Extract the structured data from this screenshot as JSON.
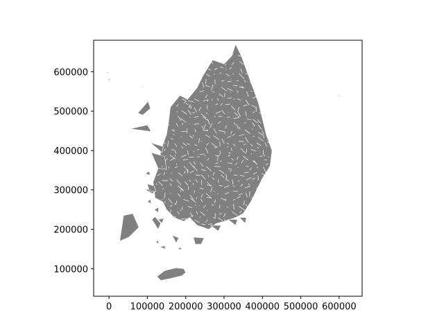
{
  "figure": {
    "background": "#ffffff",
    "land_color": "#808080",
    "boundary_color": "#ffffff"
  },
  "chart_data": {
    "type": "map",
    "description_of_marks": "choropleth-style map outline of administrative districts in grey with white boundaries",
    "xlim": [
      -40000,
      660000
    ],
    "ylim": [
      30000,
      680000
    ],
    "x_ticks": [
      {
        "value": 0,
        "label": "0"
      },
      {
        "value": 100000,
        "label": "100000"
      },
      {
        "value": 200000,
        "label": "200000"
      },
      {
        "value": 300000,
        "label": "300000"
      },
      {
        "value": 400000,
        "label": "400000"
      },
      {
        "value": 500000,
        "label": "500000"
      },
      {
        "value": 600000,
        "label": "600000"
      }
    ],
    "y_ticks": [
      {
        "value": 100000,
        "label": "100000"
      },
      {
        "value": 200000,
        "label": "200000"
      },
      {
        "value": 300000,
        "label": "300000"
      },
      {
        "value": 400000,
        "label": "400000"
      },
      {
        "value": 500000,
        "label": "500000"
      },
      {
        "value": 600000,
        "label": "600000"
      }
    ],
    "regions": [
      {
        "name": "mainland",
        "points": [
          [
            205000,
            530000
          ],
          [
            230000,
            560000
          ],
          [
            245000,
            590000
          ],
          [
            270000,
            630000
          ],
          [
            300000,
            620000
          ],
          [
            320000,
            640000
          ],
          [
            330000,
            670000
          ],
          [
            345000,
            640000
          ],
          [
            360000,
            600000
          ],
          [
            375000,
            560000
          ],
          [
            390000,
            520000
          ],
          [
            400000,
            480000
          ],
          [
            410000,
            440000
          ],
          [
            425000,
            400000
          ],
          [
            420000,
            360000
          ],
          [
            400000,
            330000
          ],
          [
            385000,
            300000
          ],
          [
            370000,
            270000
          ],
          [
            350000,
            240000
          ],
          [
            330000,
            230000
          ],
          [
            300000,
            220000
          ],
          [
            280000,
            215000
          ],
          [
            260000,
            200000
          ],
          [
            230000,
            210000
          ],
          [
            210000,
            230000
          ],
          [
            195000,
            220000
          ],
          [
            170000,
            230000
          ],
          [
            150000,
            250000
          ],
          [
            140000,
            270000
          ],
          [
            120000,
            280000
          ],
          [
            115000,
            320000
          ],
          [
            130000,
            360000
          ],
          [
            135000,
            400000
          ],
          [
            150000,
            440000
          ],
          [
            155000,
            470000
          ],
          [
            160000,
            510000
          ],
          [
            185000,
            540000
          ]
        ]
      },
      {
        "name": "jeju",
        "points": [
          [
            125000,
            80000
          ],
          [
            145000,
            95000
          ],
          [
            175000,
            102000
          ],
          [
            195000,
            100000
          ],
          [
            200000,
            90000
          ],
          [
            190000,
            82000
          ],
          [
            160000,
            75000
          ],
          [
            135000,
            70000
          ]
        ]
      },
      {
        "name": "sw-large-island",
        "points": [
          [
            28000,
            170000
          ],
          [
            38000,
            235000
          ],
          [
            62000,
            240000
          ],
          [
            78000,
            205000
          ],
          [
            52000,
            180000
          ]
        ]
      },
      {
        "name": "ulleung",
        "points": [
          [
            540000,
            555000
          ],
          [
            600000,
            540000
          ],
          [
            625000,
            530000
          ],
          [
            580000,
            545000
          ]
        ]
      },
      {
        "name": "isl-1",
        "points": [
          [
            95000,
            300000
          ],
          [
            115000,
            290000
          ],
          [
            120000,
            305000
          ]
        ]
      },
      {
        "name": "isl-2",
        "points": [
          [
            112000,
            225000
          ],
          [
            128000,
            200000
          ],
          [
            135000,
            215000
          ],
          [
            120000,
            232000
          ]
        ]
      },
      {
        "name": "isl-3",
        "points": [
          [
            128000,
            225000
          ],
          [
            138000,
            215000
          ],
          [
            143000,
            228000
          ]
        ]
      },
      {
        "name": "isl-4",
        "points": [
          [
            75000,
            495000
          ],
          [
            102000,
            525000
          ],
          [
            108000,
            507000
          ],
          [
            88000,
            490000
          ]
        ]
      },
      {
        "name": "isl-5",
        "points": [
          [
            55000,
            455000
          ],
          [
            100000,
            465000
          ],
          [
            110000,
            448000
          ]
        ]
      },
      {
        "name": "isl-6",
        "points": [
          [
            108000,
            420000
          ],
          [
            142000,
            410000
          ],
          [
            138000,
            395000
          ]
        ]
      },
      {
        "name": "isl-7",
        "points": [
          [
            110000,
            395000
          ],
          [
            145000,
            385000
          ],
          [
            150000,
            352000
          ],
          [
            128000,
            355000
          ]
        ]
      },
      {
        "name": "isl-8",
        "points": [
          [
            100000,
            315000
          ],
          [
            118000,
            310000
          ],
          [
            122000,
            295000
          ],
          [
            105000,
            298000
          ]
        ]
      },
      {
        "name": "isl-9",
        "points": [
          [
            165000,
            185000
          ],
          [
            175000,
            165000
          ],
          [
            182000,
            178000
          ]
        ]
      },
      {
        "name": "isl-10",
        "points": [
          [
            220000,
            180000
          ],
          [
            248000,
            178000
          ],
          [
            240000,
            162000
          ],
          [
            225000,
            162000
          ]
        ]
      },
      {
        "name": "isl-11",
        "points": [
          [
            265000,
            210000
          ],
          [
            285000,
            195000
          ],
          [
            292000,
            210000
          ]
        ]
      },
      {
        "name": "isl-12",
        "points": [
          [
            310000,
            225000
          ],
          [
            330000,
            210000
          ],
          [
            335000,
            225000
          ]
        ]
      },
      {
        "name": "isl-13",
        "points": [
          [
            340000,
            230000
          ],
          [
            355000,
            215000
          ],
          [
            358000,
            230000
          ]
        ]
      },
      {
        "name": "isl-14",
        "points": [
          [
            132000,
            155000
          ],
          [
            148000,
            150000
          ],
          [
            145000,
            158000
          ]
        ]
      },
      {
        "name": "isl-15",
        "points": [
          [
            -8000,
            600000
          ],
          [
            0,
            598000
          ],
          [
            -3000,
            596000
          ]
        ]
      },
      {
        "name": "isl-16",
        "points": [
          [
            -2000,
            580000
          ],
          [
            3000,
            576000
          ],
          [
            0,
            584000
          ]
        ]
      },
      {
        "name": "isl-17",
        "points": [
          [
            85000,
            562000
          ],
          [
            88000,
            560000
          ],
          [
            87000,
            566000
          ]
        ]
      },
      {
        "name": "isl-18",
        "points": [
          [
            122000,
            168000
          ],
          [
            130000,
            162000
          ],
          [
            128000,
            172000
          ]
        ]
      },
      {
        "name": "isl-19",
        "points": [
          [
            118000,
            250000
          ],
          [
            128000,
            242000
          ],
          [
            130000,
            256000
          ]
        ]
      },
      {
        "name": "isl-20",
        "points": [
          [
            208000,
            510000
          ],
          [
            215000,
            508000
          ],
          [
            212000,
            516000
          ]
        ]
      },
      {
        "name": "isl-21",
        "points": [
          [
            180000,
            150000
          ],
          [
            190000,
            148000
          ],
          [
            186000,
            155000
          ]
        ]
      },
      {
        "name": "isl-22",
        "points": [
          [
            95000,
            340000
          ],
          [
            108000,
            338000
          ],
          [
            104000,
            348000
          ]
        ]
      },
      {
        "name": "isl-23",
        "points": [
          [
            100000,
            270000
          ],
          [
            110000,
            265000
          ],
          [
            108000,
            276000
          ]
        ]
      }
    ]
  }
}
